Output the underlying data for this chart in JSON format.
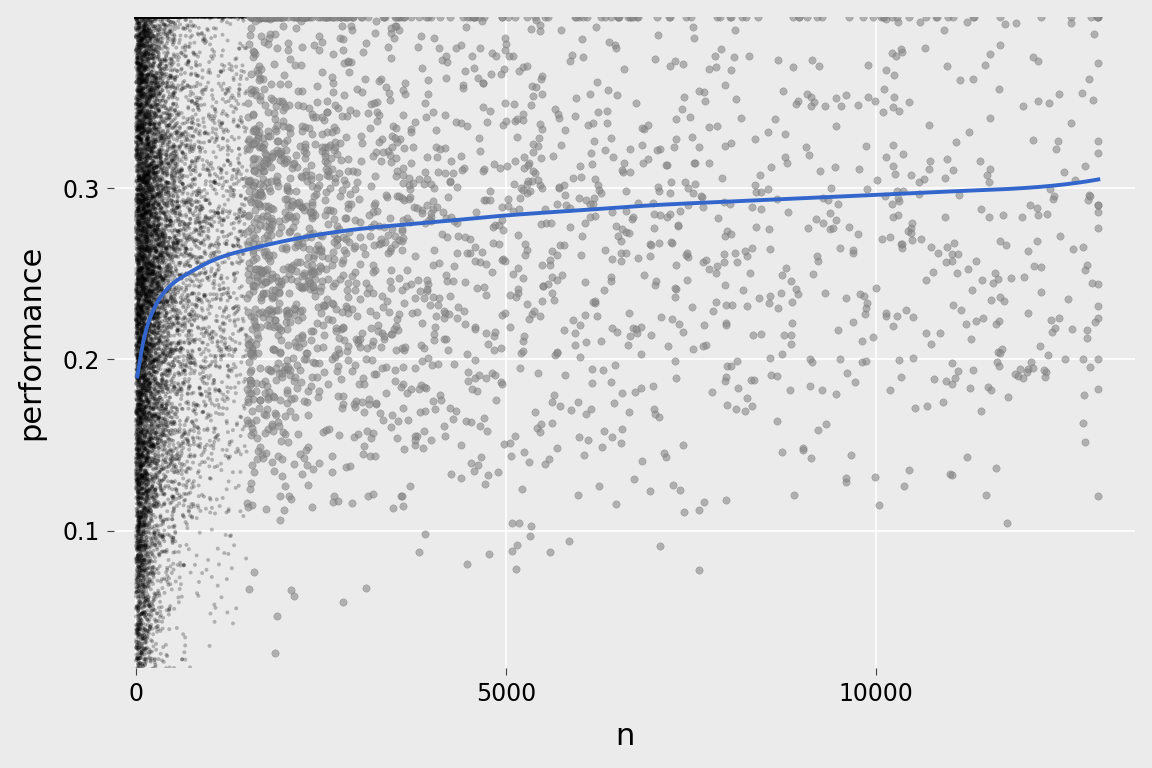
{
  "title": "",
  "xlabel": "n",
  "ylabel": "performance",
  "xlim": [
    -300,
    13500
  ],
  "ylim": [
    0.02,
    0.4
  ],
  "yticks": [
    0.1,
    0.2,
    0.3
  ],
  "xticks": [
    0,
    5000,
    10000
  ],
  "background_color": "#EBEBEB",
  "panel_bg": "#EBEBEB",
  "grid_color": "#FFFFFF",
  "scatter_color_dense": "#000000",
  "scatter_color_sparse": "#888888",
  "scatter_alpha_dense": 0.25,
  "scatter_alpha_sparse": 0.6,
  "scatter_size_dense": 8,
  "scatter_size_sparse": 28,
  "line_color": "#3366CC",
  "line_width": 2.8,
  "n_points": 15000,
  "seed": 42,
  "axis_label_fontsize": 22,
  "tick_fontsize": 17,
  "smooth_x": [
    20,
    50,
    100,
    200,
    400,
    700,
    1000,
    1500,
    2000,
    3000,
    4000,
    5000,
    6000,
    7000,
    8000,
    9000,
    10000,
    11000,
    12000,
    13000
  ],
  "smooth_y": [
    0.19,
    0.198,
    0.21,
    0.225,
    0.24,
    0.25,
    0.257,
    0.264,
    0.269,
    0.276,
    0.28,
    0.284,
    0.287,
    0.29,
    0.292,
    0.294,
    0.296,
    0.298,
    0.3,
    0.305
  ]
}
